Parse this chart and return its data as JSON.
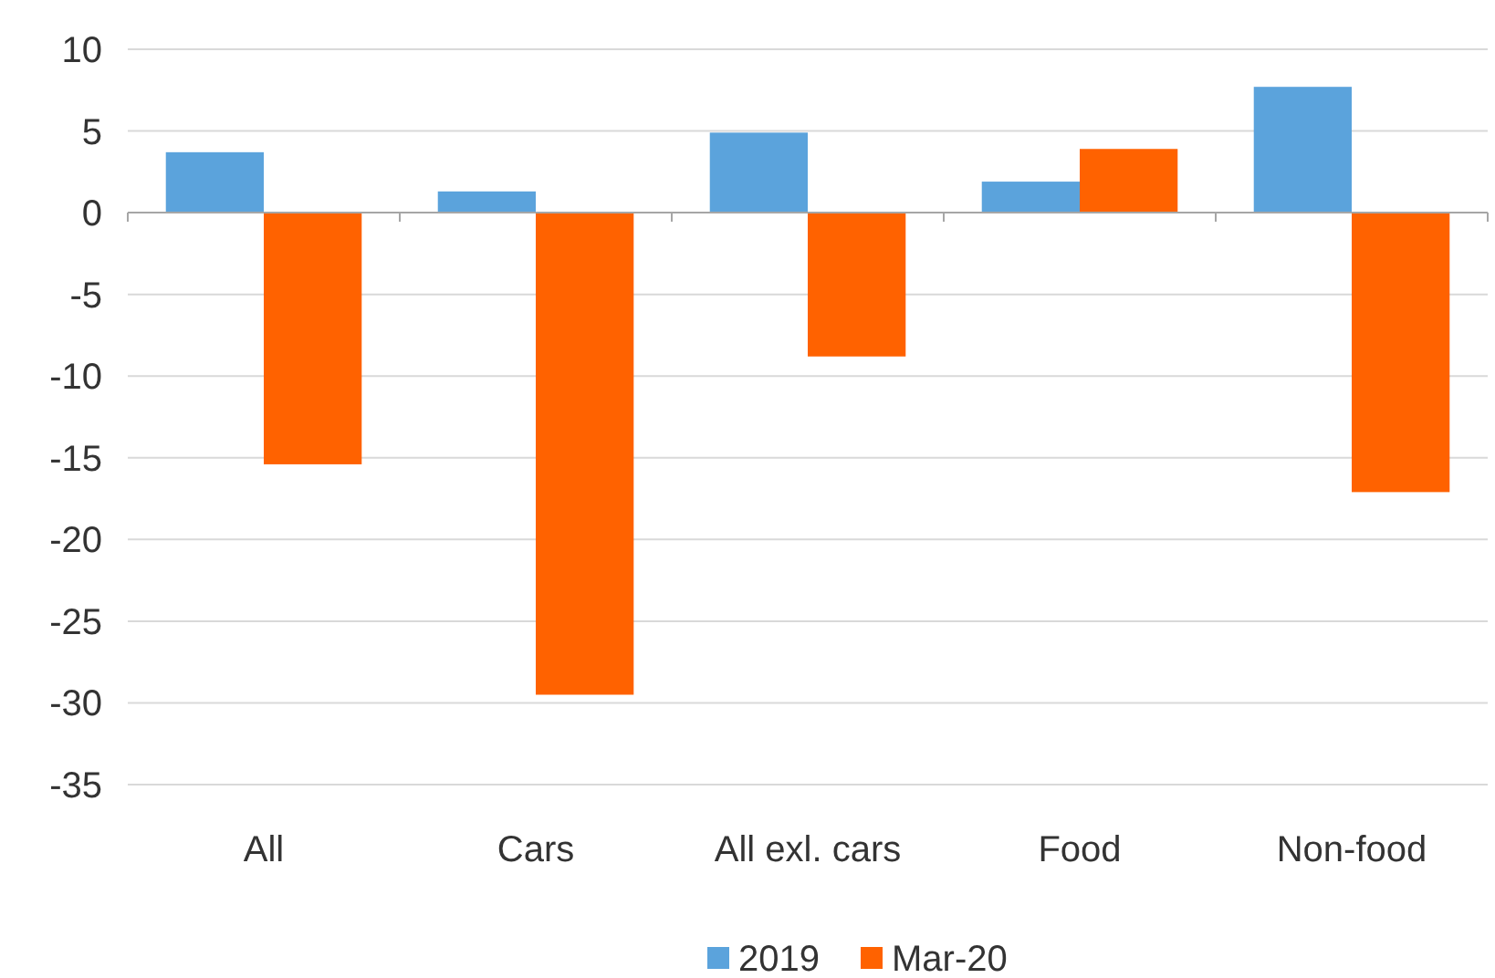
{
  "chart_data": {
    "type": "bar",
    "categories": [
      "All",
      "Cars",
      "All exl. cars",
      "Food",
      "Non-food"
    ],
    "series": [
      {
        "name": "2019",
        "color": "#5ba3dc",
        "values": [
          3.7,
          1.3,
          4.9,
          1.9,
          7.7
        ]
      },
      {
        "name": "Mar-20",
        "color": "#ff6200",
        "values": [
          -15.4,
          -29.5,
          -8.8,
          3.9,
          -17.1
        ]
      }
    ],
    "ylim": [
      -35,
      10
    ],
    "yticks": [
      -35,
      -30,
      -25,
      -20,
      -15,
      -10,
      -5,
      0,
      5,
      10
    ],
    "grid": "y",
    "legend": "bottom"
  }
}
